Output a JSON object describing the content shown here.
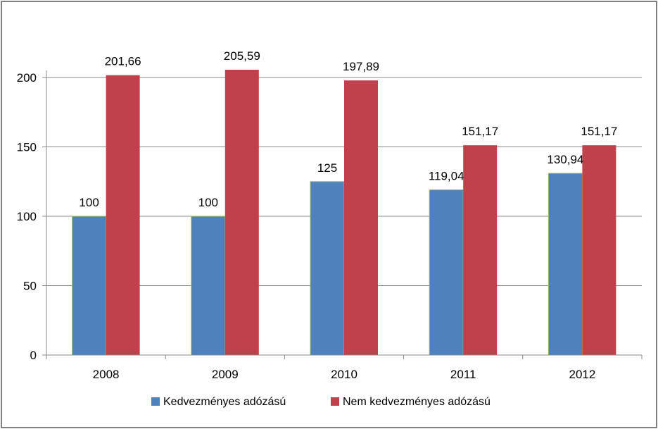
{
  "chart_data": {
    "type": "bar",
    "categories": [
      "2008",
      "2009",
      "2010",
      "2011",
      "2012"
    ],
    "series": [
      {
        "name": "Kedvezményes adózású",
        "color": "#4F81BD",
        "values": [
          100,
          100,
          125,
          119.04,
          130.94
        ],
        "labels": [
          "100",
          "100",
          "125",
          "119,04",
          "130,94"
        ]
      },
      {
        "name": "Nem kedvezményes adózású",
        "color": "#C0404B",
        "values": [
          201.66,
          205.59,
          197.89,
          151.17,
          151.17
        ],
        "labels": [
          "201,66",
          "205,59",
          "197,89",
          "151,17",
          "151,17"
        ]
      }
    ],
    "y_ticks": [
      "0",
      "50",
      "100",
      "150",
      "200"
    ],
    "ylim": [
      0,
      200
    ],
    "grid": true,
    "legend_position": "bottom"
  }
}
